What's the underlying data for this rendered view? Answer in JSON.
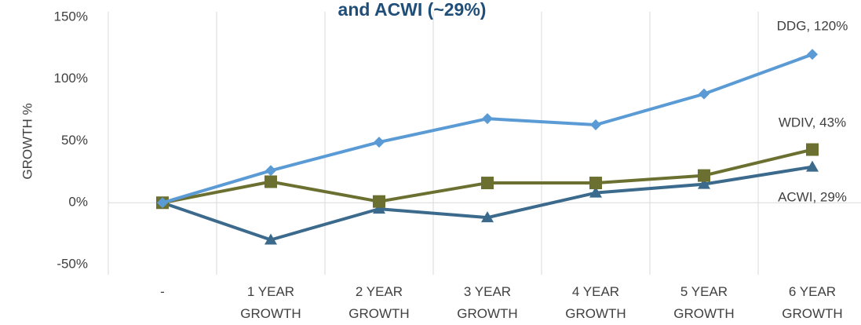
{
  "chart_data": {
    "type": "line",
    "title": "and ACWI (~29%)",
    "y_label": "GROWTH %",
    "categories": [
      "-",
      "1 YEAR GROWTH",
      "2 YEAR GROWTH",
      "3 YEAR GROWTH",
      "4 YEAR GROWTH",
      "5 YEAR GROWTH",
      "6 YEAR GROWTH"
    ],
    "series": [
      {
        "name": "DDG",
        "color": "#5b9bd5",
        "marker": "diamond",
        "values": [
          0,
          26,
          49,
          68,
          63,
          88,
          120
        ]
      },
      {
        "name": "WDIV",
        "color": "#6b7030",
        "marker": "square",
        "values": [
          0,
          17,
          1,
          16,
          16,
          22,
          43
        ]
      },
      {
        "name": "ACWI",
        "color": "#3b6a8c",
        "marker": "triangle",
        "values": [
          0,
          -30,
          -5,
          -12,
          8,
          15,
          29
        ]
      }
    ],
    "annotations": [
      "DDG, 120%",
      "WDIV, 43%",
      "ACWI, 29%"
    ],
    "ylim": [
      -50,
      150
    ],
    "yticks": [
      {
        "value": -50,
        "label": "-50%"
      },
      {
        "value": 0,
        "label": "0%"
      },
      {
        "value": 50,
        "label": "50%"
      },
      {
        "value": 100,
        "label": "100%"
      },
      {
        "value": 150,
        "label": "150%"
      }
    ],
    "grid": "vertical"
  }
}
